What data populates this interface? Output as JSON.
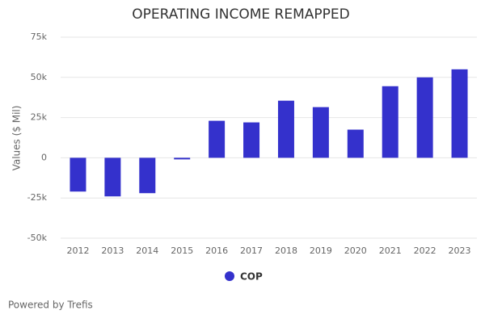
{
  "chart_data": {
    "type": "bar",
    "title": "OPERATING INCOME REMAPPED",
    "y_label": "Values ($ Mil)",
    "categories": [
      "2012",
      "2013",
      "2014",
      "2015",
      "2016",
      "2017",
      "2018",
      "2019",
      "2020",
      "2021",
      "2022",
      "2023"
    ],
    "series": [
      {
        "name": "COP",
        "color": "#3431cc",
        "values": [
          -21000,
          -24000,
          -22000,
          -1000,
          23000,
          22000,
          35500,
          31500,
          17500,
          44500,
          50000,
          55000
        ]
      }
    ],
    "ylim": [
      -50000,
      75000
    ],
    "yticks": [
      {
        "value": -50000,
        "label": "-50k"
      },
      {
        "value": -25000,
        "label": "-25k"
      },
      0,
      {
        "value": 25000,
        "label": "25k"
      },
      {
        "value": 50000,
        "label": "50k"
      },
      {
        "value": 75000,
        "label": "75k"
      }
    ],
    "grid": true,
    "legend": "bottom",
    "footer": "Powered by Trefis"
  }
}
